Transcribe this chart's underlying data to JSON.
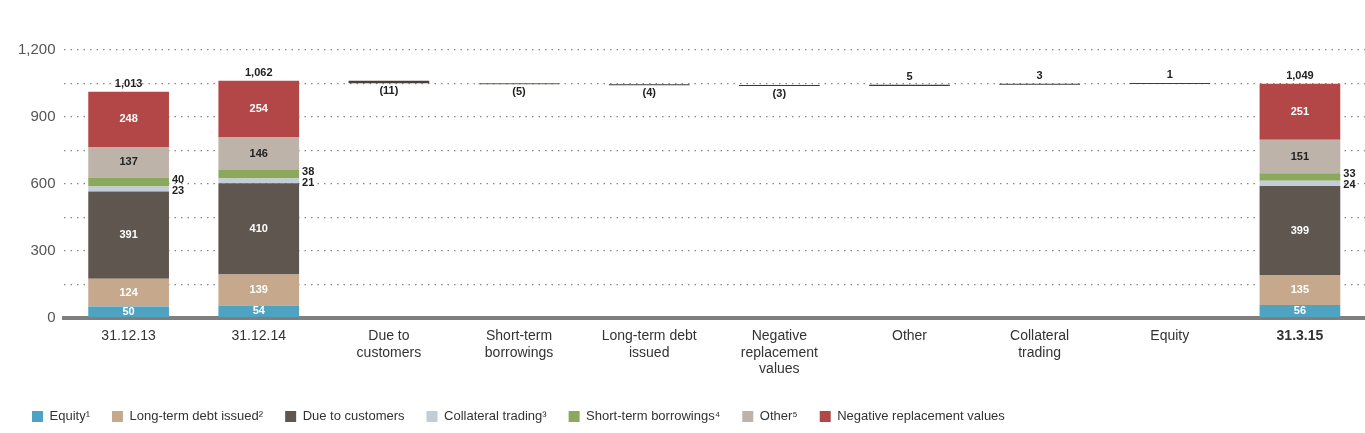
{
  "chart_data": {
    "type": "bar",
    "stacked": true,
    "categories": [
      "31.12.13",
      "31.12.14",
      "Due to customers",
      "Short-term borrowings",
      "Long-term debt issued",
      "Negative replacement values",
      "Other",
      "Collateral trading",
      "Equity",
      "31.3.15"
    ],
    "series": [
      {
        "name": "Equity¹",
        "color": "#4fa3c2",
        "values": [
          50,
          54,
          null,
          null,
          null,
          null,
          null,
          null,
          null,
          56
        ],
        "value_labels": [
          "50",
          "54",
          null,
          null,
          null,
          null,
          null,
          null,
          null,
          "56"
        ]
      },
      {
        "name": "Long-term debt issued²",
        "color": "#c6a88c",
        "values": [
          124,
          139,
          null,
          null,
          null,
          null,
          null,
          null,
          null,
          135
        ],
        "value_labels": [
          "124",
          "139",
          null,
          null,
          null,
          null,
          null,
          null,
          null,
          "135"
        ]
      },
      {
        "name": "Due to customers",
        "color": "#5f5650",
        "values": [
          391,
          410,
          null,
          null,
          null,
          null,
          null,
          null,
          null,
          399
        ],
        "value_labels": [
          "391",
          "410",
          null,
          null,
          null,
          null,
          null,
          null,
          null,
          "399"
        ]
      },
      {
        "name": "Collateral trading³",
        "color": "#c3cdd8",
        "values": [
          23,
          21,
          null,
          null,
          null,
          null,
          null,
          null,
          null,
          24
        ],
        "value_labels": [
          "23",
          "21",
          null,
          null,
          null,
          null,
          null,
          null,
          null,
          "24"
        ]
      },
      {
        "name": "Short-term borrowings⁴",
        "color": "#8ca85c",
        "values": [
          40,
          38,
          null,
          null,
          null,
          null,
          null,
          null,
          null,
          33
        ],
        "value_labels": [
          "40",
          "38",
          null,
          null,
          null,
          null,
          null,
          null,
          null,
          "33"
        ]
      },
      {
        "name": "Other⁵",
        "color": "#bdb3a9",
        "values": [
          137,
          146,
          null,
          null,
          null,
          null,
          null,
          null,
          null,
          151
        ],
        "value_labels": [
          "137",
          "146",
          null,
          null,
          null,
          null,
          null,
          null,
          null,
          "151"
        ]
      },
      {
        "name": "Negative replacement values",
        "color": "#b34747",
        "values": [
          248,
          254,
          null,
          null,
          null,
          null,
          null,
          null,
          null,
          251
        ],
        "value_labels": [
          "248",
          "254",
          null,
          null,
          null,
          null,
          null,
          null,
          null,
          "251"
        ]
      },
      {
        "type": "bar",
        "base": [
          null,
          null,
          1062,
          1051,
          1046,
          1042,
          1039,
          1044,
          1047,
          null
        ],
        "values": [
          null,
          null,
          -11,
          -5,
          -4,
          -3,
          5,
          3,
          1,
          null
        ],
        "colors": [
          "#000000",
          "#000000",
          "#4a403a",
          "#56613a",
          "#3c3836",
          "#3e3434",
          "#3e3a36",
          "#3c3e42",
          "#3a3f48",
          "#000000"
        ],
        "value_labels": [
          null,
          null,
          "(11)",
          "(5)",
          "(4)",
          "(3)",
          "5",
          "3",
          "1",
          null
        ]
      }
    ],
    "totals": [
      "1,013",
      "1,062",
      null,
      null,
      null,
      null,
      null,
      null,
      null,
      "1,049"
    ],
    "ylim": [
      0,
      1200
    ],
    "yticks": [
      0,
      {
        "value": 150,
        "label": null
      },
      300,
      {
        "value": 450,
        "label": null
      },
      600,
      {
        "value": 750,
        "label": null
      },
      900,
      {
        "value": 1050,
        "label": null
      },
      "1,200"
    ],
    "grid": "y",
    "legend": "bottom"
  }
}
